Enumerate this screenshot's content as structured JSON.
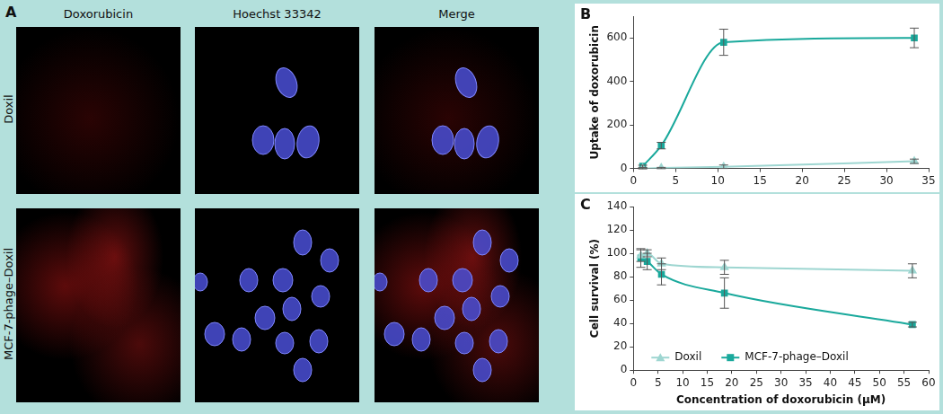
{
  "panel_a": {
    "panel": "A",
    "columns": [
      "Doxorubicin",
      "Hoechst 33342",
      "Merge"
    ],
    "rows": [
      "Doxil",
      "MCF-7-phage–Doxil"
    ]
  },
  "chart_data": [
    {
      "panel": "B",
      "type": "line",
      "y_label": "Uptake of doxorubicin",
      "xlim": [
        0,
        35
      ],
      "xticks": [
        0,
        5,
        10,
        15,
        20,
        25,
        30,
        35
      ],
      "ylim": [
        0,
        700
      ],
      "yticks": [
        0,
        200,
        400,
        600
      ],
      "grid": false,
      "series": [
        {
          "color": "#9ed6d1",
          "marker": "triangle",
          "x": [
            1.1,
            3.3,
            10.7,
            33.3
          ],
          "values": [
            0,
            2,
            8,
            33
          ],
          "errors": [
            2,
            3,
            8,
            10
          ]
        },
        {
          "color": "#1aa99c",
          "marker": "square",
          "x": [
            1.1,
            3.3,
            10.7,
            33.3
          ],
          "values": [
            10,
            105,
            580,
            600
          ],
          "errors": [
            5,
            15,
            60,
            45
          ]
        }
      ]
    },
    {
      "panel": "C",
      "type": "line",
      "x_label": "Concentration of doxorubicin (µM)",
      "y_label": "Cell survival (%)",
      "xlim": [
        0,
        60
      ],
      "xticks": [
        0,
        5,
        10,
        15,
        20,
        25,
        30,
        35,
        40,
        45,
        50,
        55,
        60
      ],
      "ylim": [
        0,
        140
      ],
      "yticks": [
        0,
        20,
        40,
        60,
        80,
        100,
        120,
        140
      ],
      "grid": false,
      "legend": "lower left",
      "series": [
        {
          "name": "Doxil",
          "color": "#9ed6d1",
          "marker": "triangle",
          "x": [
            1.5,
            2.8,
            5.7,
            18.5,
            56.7
          ],
          "values": [
            98,
            100,
            91,
            88,
            85
          ],
          "errors": [
            5,
            3,
            5,
            6,
            6
          ]
        },
        {
          "name": "MCF-7-phage–Doxil",
          "color": "#1aa99c",
          "marker": "square",
          "x": [
            1.5,
            2.8,
            5.7,
            18.5,
            56.7
          ],
          "values": [
            96,
            93,
            82,
            66,
            39
          ],
          "errors": [
            8,
            7,
            9,
            13,
            2
          ]
        }
      ]
    }
  ]
}
